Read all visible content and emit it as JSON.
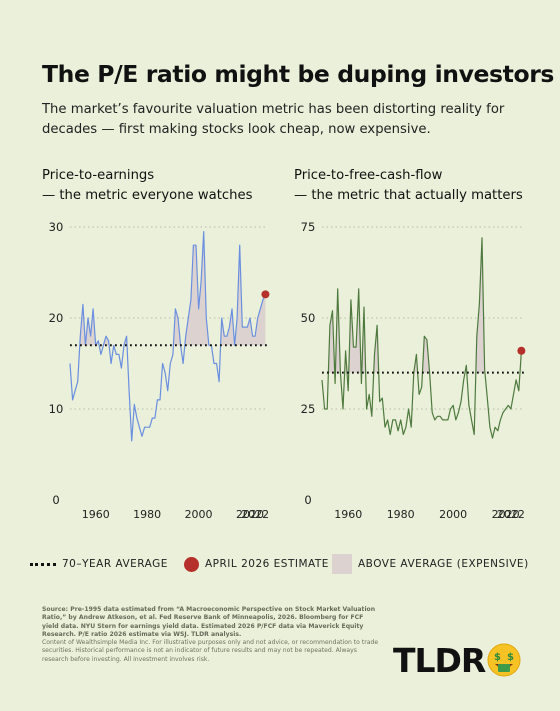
{
  "header": {
    "title": "The P/E ratio might be duping investors",
    "subtitle": "The market’s favourite valuation metric has been distorting reality for decades — first making stocks look cheap, now expensive."
  },
  "legend": {
    "average_label": "70–YEAR AVERAGE",
    "estimate_label": "APRIL 2026 ESTIMATE",
    "above_label": "ABOVE AVERAGE (EXPENSIVE)"
  },
  "colors": {
    "background": "#eaf0d9",
    "pe_line": "#6a8fe0",
    "pfcf_line": "#4f7a3f",
    "estimate_marker": "#b5302a",
    "above_fill": "#dcd3d1"
  },
  "footer": {
    "source": "Source: Pre-1995 data estimated from “A Macroeconomic Perspective on Stock Market Valuation Ratio,” by Andrew Atkeson, et al. Fed Reserve Bank of Minneapolis, 2026. Bloomberg for FCF yield data. NYU Stern for earnings yield data. Estimated 2026 P/FCF data via Maverick Equity Research. P/E ratio 2026 estimate via WSJ. TLDR analysis.",
    "disclaimer": "Content of Wealthsimple Media Inc. For illustrative purposes only and not advice, or recommendation to trade securities. Historical performance is not an indicator of future results and may not be repeated. Always research before investing. All investment involves risk."
  },
  "brand": {
    "logo_text": "TLDR",
    "logo_icon": "money-face-emoji-icon"
  },
  "chart_data": [
    {
      "type": "line",
      "title": "Price-to-earnings",
      "subtitle": "— the metric everyone watches",
      "xlabel": "",
      "ylabel": "",
      "ylim": [
        0,
        30
      ],
      "yticks": [
        0,
        10,
        20,
        30
      ],
      "xticks": [
        1960,
        1980,
        2000,
        2020,
        2022
      ],
      "xlim": [
        1950,
        2027
      ],
      "average": 17,
      "estimate": {
        "x": 2026,
        "y": 22.6
      },
      "series": [
        {
          "x": [
            1950,
            1951,
            1952,
            1953,
            1954,
            1955,
            1956,
            1957,
            1958,
            1959,
            1960,
            1961,
            1962,
            1963,
            1964,
            1965,
            1966,
            1967,
            1968,
            1969,
            1970,
            1971,
            1972,
            1973,
            1974,
            1975,
            1976,
            1977,
            1978,
            1979,
            1980,
            1981,
            1982,
            1983,
            1984,
            1985,
            1986,
            1987,
            1988,
            1989,
            1990,
            1991,
            1992,
            1993,
            1994,
            1995,
            1996,
            1997,
            1998,
            1999,
            2000,
            2001,
            2002,
            2003,
            2004,
            2005,
            2006,
            2007,
            2008,
            2009,
            2010,
            2011,
            2012,
            2013,
            2014,
            2015,
            2016,
            2017,
            2018,
            2019,
            2020,
            2021,
            2022,
            2023,
            2024,
            2025
          ],
          "y": [
            15,
            11,
            12,
            13,
            18,
            21.5,
            17,
            20,
            18,
            21,
            17,
            17.5,
            16,
            17,
            18,
            17.5,
            15,
            17,
            16,
            16,
            14.5,
            17,
            18,
            12,
            6.5,
            10.5,
            9,
            8,
            7,
            8,
            8,
            8,
            9,
            9,
            11,
            11,
            15,
            14,
            12,
            15,
            16,
            21,
            20,
            17,
            15,
            18,
            20,
            22,
            28,
            28,
            21,
            24,
            29.5,
            20,
            17,
            17,
            15,
            15,
            13,
            20,
            18,
            18,
            19,
            21,
            17,
            20,
            28,
            19,
            19,
            19,
            20,
            18,
            18,
            20,
            21,
            22
          ]
        }
      ]
    },
    {
      "type": "line",
      "title": "Price-to-free-cash-flow",
      "subtitle": "— the metric that actually matters",
      "xlabel": "",
      "ylabel": "",
      "ylim": [
        0,
        75
      ],
      "yticks": [
        0,
        25,
        50,
        75
      ],
      "xticks": [
        1960,
        1980,
        2000,
        2020,
        2022
      ],
      "xlim": [
        1950,
        2027
      ],
      "average": 35,
      "estimate": {
        "x": 2026,
        "y": 41
      },
      "series": [
        {
          "x": [
            1950,
            1951,
            1952,
            1953,
            1954,
            1955,
            1956,
            1957,
            1958,
            1959,
            1960,
            1961,
            1962,
            1963,
            1964,
            1965,
            1966,
            1967,
            1968,
            1969,
            1970,
            1971,
            1972,
            1973,
            1974,
            1975,
            1976,
            1977,
            1978,
            1979,
            1980,
            1981,
            1982,
            1983,
            1984,
            1985,
            1986,
            1987,
            1988,
            1989,
            1990,
            1991,
            1992,
            1993,
            1994,
            1995,
            1996,
            1997,
            1998,
            1999,
            2000,
            2001,
            2002,
            2003,
            2004,
            2005,
            2006,
            2007,
            2008,
            2009,
            2010,
            2011,
            2012,
            2013,
            2014,
            2015,
            2016,
            2017,
            2018,
            2019,
            2020,
            2021,
            2022,
            2023,
            2024,
            2025
          ],
          "y": [
            33,
            25,
            25,
            48,
            52,
            32,
            58,
            35,
            25,
            41,
            30,
            55,
            42,
            42,
            58,
            32,
            53,
            25,
            29,
            23,
            40,
            48,
            27,
            28,
            20,
            22,
            18,
            22,
            22,
            19,
            22,
            18,
            20,
            25,
            20,
            35,
            40,
            29,
            31,
            45,
            44,
            35,
            24,
            22,
            23,
            23,
            22,
            22,
            22,
            25,
            26,
            22,
            24,
            27,
            33,
            37,
            26,
            22,
            18,
            45,
            54,
            72,
            36,
            28,
            20,
            17,
            20,
            19,
            22,
            24,
            25,
            26,
            25,
            29,
            33,
            30
          ]
        }
      ]
    }
  ]
}
